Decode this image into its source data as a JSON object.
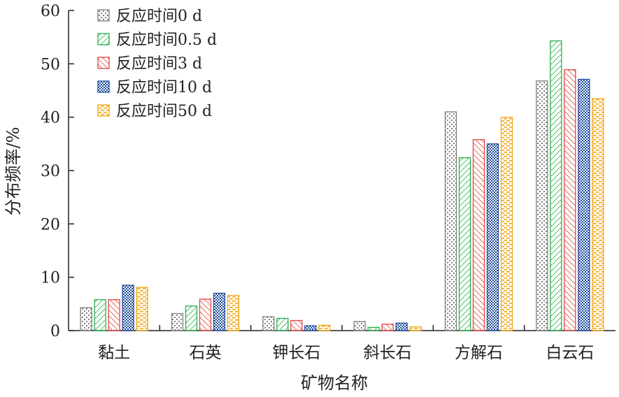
{
  "chart_data": {
    "type": "bar",
    "xlabel": "矿物名称",
    "ylabel": "分布频率/%",
    "ylim": [
      0,
      60
    ],
    "yticks": [
      0,
      10,
      20,
      30,
      40,
      50,
      60
    ],
    "categories": [
      "黏土",
      "石英",
      "钾长石",
      "斜长石",
      "方解石",
      "白云石"
    ],
    "legend_position": "top-left",
    "series": [
      {
        "name": "反应时间0 d",
        "color": "#7f7f7f",
        "pattern": "dots-sparse",
        "values": [
          4.3,
          3.2,
          2.6,
          1.7,
          41.0,
          46.8
        ]
      },
      {
        "name": "反应时间0.5 d",
        "color": "#27ae4f",
        "pattern": "diagonal-dots",
        "values": [
          5.8,
          4.6,
          2.3,
          0.6,
          32.4,
          54.3
        ]
      },
      {
        "name": "反应时间3 d",
        "color": "#e0453f",
        "pattern": "diagonal-dots",
        "values": [
          5.8,
          5.9,
          1.9,
          1.2,
          35.8,
          48.9
        ]
      },
      {
        "name": "反应时间10 d",
        "color": "#1f4e9c",
        "pattern": "dots-dense",
        "values": [
          8.5,
          7.0,
          0.9,
          1.4,
          35.0,
          47.1
        ]
      },
      {
        "name": "反应时间50 d",
        "color": "#f0a818",
        "pattern": "dashes",
        "values": [
          8.1,
          6.6,
          1.0,
          0.7,
          40.0,
          43.5
        ]
      }
    ]
  }
}
